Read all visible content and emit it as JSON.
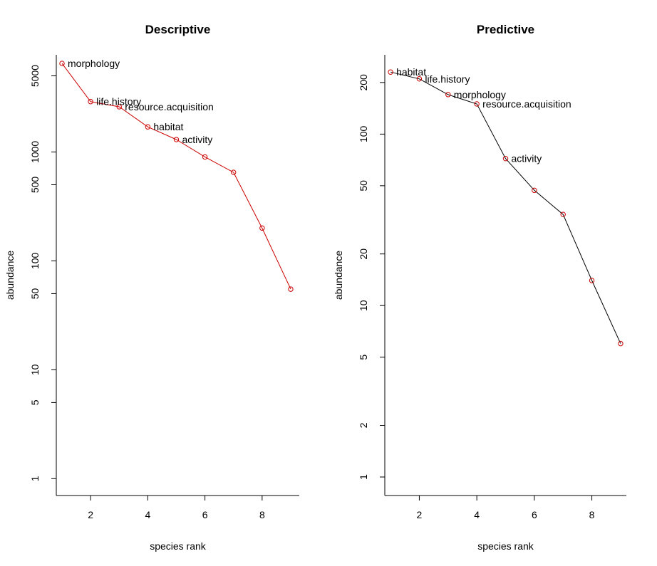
{
  "chart_data": [
    {
      "type": "line",
      "title": "Descriptive",
      "xlabel": "species rank",
      "ylabel": "abundance",
      "y_scale": "log",
      "xlim": [
        0.8,
        9.3
      ],
      "ylim": [
        0.7,
        7800
      ],
      "x_ticks": [
        2,
        4,
        6,
        8
      ],
      "y_ticks": [
        1,
        5,
        10,
        50,
        100,
        500,
        1000,
        5000
      ],
      "line_color": "#cc0000",
      "marker_color": "#cc0000",
      "x": [
        1,
        2,
        3,
        4,
        5,
        6,
        7,
        8,
        9
      ],
      "y": [
        6500,
        2900,
        2600,
        1700,
        1300,
        900,
        650,
        200,
        55
      ],
      "point_labels": [
        "morphology",
        "life.history",
        "resource.acquisition",
        "habitat",
        "activity",
        "",
        "",
        "",
        ""
      ]
    },
    {
      "type": "line",
      "title": "Predictive",
      "xlabel": "species rank",
      "ylabel": "abundance",
      "y_scale": "log",
      "xlim": [
        0.8,
        9.2
      ],
      "ylim": [
        0.78,
        290
      ],
      "x_ticks": [
        2,
        4,
        6,
        8
      ],
      "y_ticks": [
        1,
        2,
        5,
        10,
        20,
        50,
        100,
        200
      ],
      "line_color": "#000000",
      "marker_color": "#cc0000",
      "x": [
        1,
        2,
        3,
        4,
        5,
        6,
        7,
        8,
        9
      ],
      "y": [
        230,
        210,
        170,
        150,
        72,
        47,
        34,
        14,
        6
      ],
      "point_labels": [
        "habitat",
        "life.history",
        "morphology",
        "resource.acquisition",
        "activity",
        "",
        "",
        "",
        ""
      ]
    }
  ]
}
